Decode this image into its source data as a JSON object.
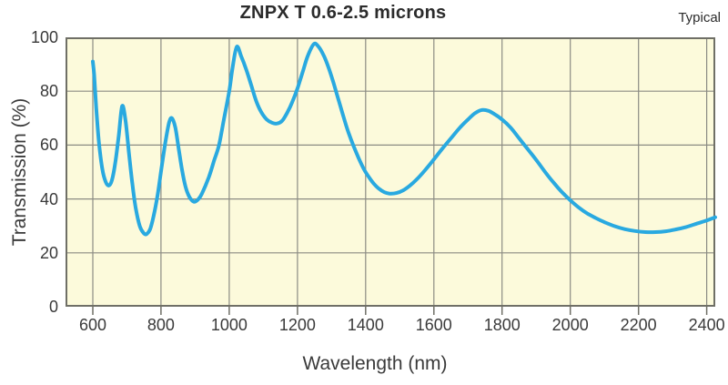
{
  "header": {
    "title": "ZNPX T 0.6-2.5 microns",
    "annotation": "Typical"
  },
  "chart_data": {
    "type": "line",
    "title": "ZNPX T 0.6-2.5 microns",
    "annotation": "Typical",
    "xlabel": "Wavelength (nm)",
    "ylabel": "Transmission (%)",
    "x_ticks": [
      600,
      800,
      1000,
      1200,
      1400,
      1600,
      1800,
      2000,
      2200,
      2400
    ],
    "y_ticks": [
      0,
      20,
      40,
      60,
      80,
      100
    ],
    "xlim": [
      520,
      2425
    ],
    "ylim": [
      0,
      100
    ],
    "grid": true,
    "legend_position": "none",
    "series": [
      {
        "name": "Transmission",
        "points": [
          [
            600,
            91
          ],
          [
            604,
            86
          ],
          [
            610,
            74
          ],
          [
            618,
            61
          ],
          [
            628,
            51
          ],
          [
            638,
            46.3
          ],
          [
            647,
            45
          ],
          [
            656,
            47
          ],
          [
            666,
            53.5
          ],
          [
            676,
            63.5
          ],
          [
            686,
            74.5
          ],
          [
            696,
            69
          ],
          [
            706,
            57
          ],
          [
            716,
            45.5
          ],
          [
            726,
            36.5
          ],
          [
            738,
            29.8
          ],
          [
            750,
            27.2
          ],
          [
            758,
            27
          ],
          [
            768,
            28.8
          ],
          [
            778,
            33.5
          ],
          [
            790,
            41.5
          ],
          [
            802,
            52
          ],
          [
            814,
            62
          ],
          [
            824,
            68.5
          ],
          [
            832,
            70
          ],
          [
            842,
            66.5
          ],
          [
            852,
            58.5
          ],
          [
            862,
            50.5
          ],
          [
            872,
            44.5
          ],
          [
            882,
            41
          ],
          [
            892,
            39.3
          ],
          [
            900,
            39
          ],
          [
            910,
            40
          ],
          [
            920,
            42
          ],
          [
            940,
            48
          ],
          [
            955,
            54
          ],
          [
            970,
            60
          ],
          [
            985,
            70
          ],
          [
            1000,
            80
          ],
          [
            1010,
            89
          ],
          [
            1022,
            96.5
          ],
          [
            1035,
            93
          ],
          [
            1050,
            88
          ],
          [
            1065,
            82
          ],
          [
            1080,
            76
          ],
          [
            1095,
            72
          ],
          [
            1110,
            69.5
          ],
          [
            1125,
            68.3
          ],
          [
            1140,
            68
          ],
          [
            1155,
            69
          ],
          [
            1170,
            72
          ],
          [
            1185,
            76
          ],
          [
            1200,
            81
          ],
          [
            1215,
            87
          ],
          [
            1230,
            93
          ],
          [
            1248,
            97.5
          ],
          [
            1262,
            96.5
          ],
          [
            1278,
            93
          ],
          [
            1292,
            88.5
          ],
          [
            1306,
            83
          ],
          [
            1320,
            77
          ],
          [
            1335,
            70.5
          ],
          [
            1350,
            64.5
          ],
          [
            1365,
            59.5
          ],
          [
            1380,
            55
          ],
          [
            1395,
            51
          ],
          [
            1410,
            48
          ],
          [
            1425,
            45.5
          ],
          [
            1440,
            43.7
          ],
          [
            1455,
            42.5
          ],
          [
            1470,
            42
          ],
          [
            1490,
            42.2
          ],
          [
            1510,
            43.2
          ],
          [
            1530,
            45
          ],
          [
            1550,
            47.3
          ],
          [
            1575,
            50.8
          ],
          [
            1600,
            54.7
          ],
          [
            1625,
            58.7
          ],
          [
            1650,
            62.5
          ],
          [
            1675,
            66.3
          ],
          [
            1700,
            69.5
          ],
          [
            1720,
            71.8
          ],
          [
            1740,
            73
          ],
          [
            1760,
            72.7
          ],
          [
            1780,
            71.3
          ],
          [
            1800,
            69.5
          ],
          [
            1825,
            66.5
          ],
          [
            1850,
            62.5
          ],
          [
            1875,
            58.5
          ],
          [
            1900,
            54.5
          ],
          [
            1925,
            50.2
          ],
          [
            1950,
            46.2
          ],
          [
            1975,
            42.6
          ],
          [
            2000,
            39.5
          ],
          [
            2025,
            36.8
          ],
          [
            2050,
            34.6
          ],
          [
            2075,
            32.9
          ],
          [
            2100,
            31.4
          ],
          [
            2130,
            29.9
          ],
          [
            2160,
            28.8
          ],
          [
            2190,
            28.1
          ],
          [
            2220,
            27.7
          ],
          [
            2250,
            27.7
          ],
          [
            2280,
            28
          ],
          [
            2310,
            28.7
          ],
          [
            2340,
            29.6
          ],
          [
            2370,
            30.8
          ],
          [
            2400,
            32
          ],
          [
            2425,
            33.2
          ]
        ]
      }
    ],
    "colors": {
      "curve": "#29A9E0",
      "plot_bg": "#FCFADB",
      "grid": "#8B8B83",
      "border": "#6F6F66",
      "text": "#3a3a3a"
    }
  }
}
